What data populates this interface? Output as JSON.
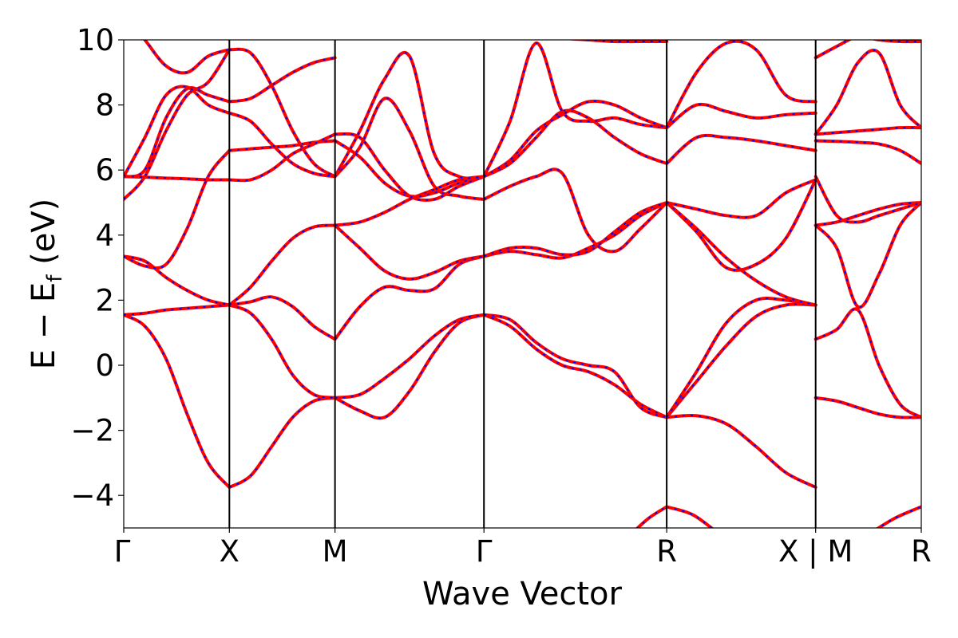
{
  "chart_data": {
    "type": "line",
    "xlabel": "Wave Vector",
    "ylabel_parts": {
      "main": "E − E",
      "sub": "f",
      "unit": " (eV)"
    },
    "ylim": [
      -5,
      10
    ],
    "yticks": [
      {
        "value": -4,
        "label": "−4"
      },
      {
        "value": -2,
        "label": "−2"
      },
      {
        "value": 0,
        "label": "0"
      },
      {
        "value": 2,
        "label": "2"
      },
      {
        "value": 4,
        "label": "4"
      },
      {
        "value": 6,
        "label": "6"
      },
      {
        "value": 8,
        "label": "8"
      },
      {
        "value": 10,
        "label": "10"
      }
    ],
    "xlim": [
      0,
      7.55
    ],
    "kpoints": [
      {
        "x": 0,
        "label": "Γ"
      },
      {
        "x": 1,
        "label": "X"
      },
      {
        "x": 2,
        "label": "M"
      },
      {
        "x": 3.41,
        "label": "Γ"
      },
      {
        "x": 5.14,
        "label": "R"
      },
      {
        "x": 6.55,
        "label": "X | M"
      },
      {
        "x": 7.55,
        "label": "R"
      }
    ],
    "line_colors": {
      "primary": "#ff0000",
      "overlay": "#0000ff"
    },
    "segments": [
      {
        "name": "Γ-X",
        "x": [
          0,
          1
        ],
        "bands": [
          [
            1.55,
            1.2,
            0.2,
            -1.5,
            -3.0,
            -3.75
          ],
          [
            1.55,
            1.6,
            1.7,
            1.75,
            1.8,
            1.85
          ],
          [
            3.35,
            3.2,
            2.7,
            2.3,
            2.0,
            1.85
          ],
          [
            3.35,
            3.05,
            3.1,
            4.2,
            5.8,
            6.6
          ],
          [
            5.1,
            5.8,
            7.2,
            8.3,
            8.7,
            9.7
          ],
          [
            5.8,
            5.78,
            5.75,
            5.73,
            5.7,
            5.7
          ],
          [
            5.8,
            6.0,
            7.6,
            8.5,
            8.3,
            8.1
          ],
          [
            5.8,
            7.0,
            8.3,
            8.55,
            8.0,
            7.75
          ],
          [
            10.8,
            10.0,
            9.2,
            9.0,
            9.5,
            9.7
          ]
        ]
      },
      {
        "name": "X-M",
        "x": [
          1,
          2
        ],
        "bands": [
          [
            -3.75,
            -3.4,
            -2.5,
            -1.6,
            -1.1,
            -1.0
          ],
          [
            1.85,
            1.6,
            0.8,
            -0.3,
            -0.9,
            -1.0
          ],
          [
            1.85,
            1.95,
            2.1,
            1.8,
            1.2,
            0.8
          ],
          [
            1.85,
            2.4,
            3.2,
            3.9,
            4.25,
            4.3
          ],
          [
            6.6,
            6.65,
            6.7,
            6.75,
            6.85,
            6.9
          ],
          [
            5.7,
            5.7,
            6.0,
            6.5,
            6.8,
            7.1
          ],
          [
            7.75,
            7.5,
            6.8,
            6.2,
            5.9,
            5.8
          ],
          [
            8.1,
            8.2,
            8.6,
            9.0,
            9.3,
            9.45
          ],
          [
            9.7,
            9.6,
            8.6,
            7.2,
            6.2,
            5.8
          ]
        ]
      },
      {
        "name": "M-Γ",
        "x": [
          2,
          3.41
        ],
        "bands": [
          [
            -1.0,
            -1.4,
            -1.6,
            -0.8,
            0.4,
            1.3,
            1.55
          ],
          [
            -1.0,
            -0.9,
            -0.4,
            0.2,
            0.9,
            1.4,
            1.55
          ],
          [
            0.8,
            1.8,
            2.4,
            2.3,
            2.35,
            3.1,
            3.35
          ],
          [
            4.3,
            3.6,
            2.9,
            2.65,
            2.85,
            3.2,
            3.35
          ],
          [
            4.3,
            4.4,
            4.7,
            5.1,
            5.4,
            5.7,
            5.8
          ],
          [
            5.8,
            6.7,
            8.2,
            7.2,
            5.5,
            5.2,
            5.1
          ],
          [
            6.9,
            6.4,
            5.6,
            5.2,
            5.3,
            5.6,
            5.8
          ],
          [
            7.1,
            7.0,
            6.0,
            5.2,
            5.1,
            5.5,
            5.8
          ],
          [
            5.8,
            7.2,
            8.8,
            9.5,
            6.5,
            5.8,
            5.8
          ]
        ]
      },
      {
        "name": "Γ-R",
        "x": [
          3.41,
          5.14
        ],
        "bands": [
          [
            1.55,
            1.2,
            0.5,
            0.0,
            -0.2,
            -0.6,
            -1.2,
            -1.6
          ],
          [
            1.55,
            1.4,
            0.7,
            0.2,
            0.0,
            -0.2,
            -1.3,
            -1.6
          ],
          [
            3.35,
            3.5,
            3.4,
            3.3,
            3.6,
            4.0,
            4.6,
            5.0
          ],
          [
            3.35,
            3.6,
            3.6,
            3.4,
            3.5,
            4.1,
            4.7,
            5.0
          ],
          [
            5.1,
            5.5,
            5.8,
            5.9,
            4.0,
            3.5,
            4.2,
            5.0
          ],
          [
            5.8,
            6.2,
            7.0,
            7.8,
            7.6,
            7.0,
            6.5,
            6.2
          ],
          [
            5.8,
            7.5,
            9.9,
            7.8,
            7.5,
            7.6,
            7.4,
            7.3
          ],
          [
            5.8,
            6.3,
            7.2,
            7.7,
            8.1,
            8.0,
            7.6,
            7.3
          ],
          [
            10.4,
            10.2,
            10.1,
            10.05,
            10.0,
            9.95,
            9.95,
            9.95
          ]
        ]
      },
      {
        "name": "R-X",
        "x": [
          5.14,
          6.55
        ],
        "bands": [
          [
            -1.6,
            -1.55,
            -1.8,
            -2.5,
            -3.3,
            -3.75
          ],
          [
            -1.6,
            -0.5,
            0.6,
            1.5,
            1.85,
            1.85
          ],
          [
            -1.6,
            -0.2,
            1.3,
            2.0,
            2.0,
            1.85
          ],
          [
            5.0,
            4.1,
            3.0,
            3.1,
            3.9,
            5.7
          ],
          [
            5.0,
            4.2,
            3.3,
            2.6,
            2.1,
            1.85
          ],
          [
            5.0,
            4.8,
            4.6,
            4.6,
            5.3,
            5.7
          ],
          [
            6.2,
            7.0,
            7.0,
            6.9,
            6.75,
            6.6
          ],
          [
            7.3,
            8.0,
            7.8,
            7.6,
            7.7,
            7.75
          ],
          [
            7.3,
            9.0,
            9.9,
            9.7,
            8.3,
            8.1
          ]
        ]
      },
      {
        "name": "M-R",
        "x": [
          6.55,
          7.55
        ],
        "bands": [
          [
            -1.0,
            -1.1,
            -1.3,
            -1.5,
            -1.6,
            -1.6
          ],
          [
            0.8,
            1.1,
            1.7,
            0.0,
            -1.2,
            -1.6
          ],
          [
            4.3,
            3.6,
            1.8,
            2.8,
            4.3,
            5.0
          ],
          [
            4.3,
            4.4,
            4.6,
            4.8,
            4.95,
            5.0
          ],
          [
            5.8,
            4.6,
            4.4,
            4.6,
            4.8,
            5.0
          ],
          [
            6.9,
            6.88,
            6.85,
            6.8,
            6.6,
            6.2
          ],
          [
            7.1,
            7.15,
            7.2,
            7.25,
            7.3,
            7.3
          ],
          [
            7.1,
            8.0,
            9.3,
            9.6,
            8.0,
            7.3
          ],
          [
            9.45,
            9.8,
            10.1,
            10.0,
            9.95,
            9.95
          ]
        ]
      },
      {
        "name": "R-low",
        "x": [
          5.14,
          5.64
        ],
        "bands": [
          [
            -4.35,
            -4.6,
            -5.2
          ]
        ]
      },
      {
        "name": "R-low-2",
        "x": [
          4.8,
          5.14
        ],
        "bands": [
          [
            -5.2,
            -4.7,
            -4.35
          ]
        ]
      },
      {
        "name": "R-end-low",
        "x": [
          7.05,
          7.55
        ],
        "bands": [
          [
            -5.2,
            -4.7,
            -4.35
          ]
        ]
      }
    ]
  }
}
